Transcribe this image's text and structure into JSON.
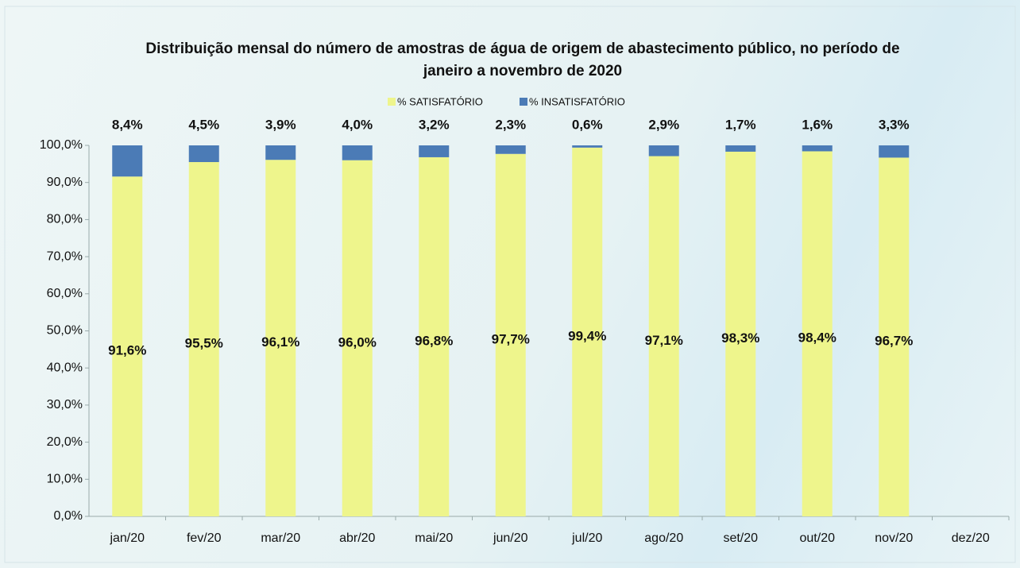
{
  "chart_data": {
    "type": "stacked_bar",
    "title": "Distribuição mensal do número de amostras de água de origem de abastecimento público, no período de janeiro a novembro de 2020",
    "categories": [
      "jan/20",
      "fev/20",
      "mar/20",
      "abr/20",
      "mai/20",
      "jun/20",
      "jul/20",
      "ago/20",
      "set/20",
      "out/20",
      "nov/20",
      "dez/20"
    ],
    "series": [
      {
        "name": "% SATISFATÓRIO",
        "color": "#eef58c",
        "values": [
          91.6,
          95.5,
          96.1,
          96.0,
          96.8,
          97.7,
          99.4,
          97.1,
          98.3,
          98.4,
          96.7,
          null
        ],
        "value_labels": [
          "91,6%",
          "95,5%",
          "96,1%",
          "96,0%",
          "96,8%",
          "97,7%",
          "99,4%",
          "97,1%",
          "98,3%",
          "98,4%",
          "96,7%",
          null
        ]
      },
      {
        "name": "% INSATISFATÓRIO",
        "color": "#4b7bb6",
        "values": [
          8.4,
          4.5,
          3.9,
          4.0,
          3.2,
          2.3,
          0.6,
          2.9,
          1.7,
          1.6,
          3.3,
          null
        ],
        "value_labels": [
          "8,4%",
          "4,5%",
          "3,9%",
          "4,0%",
          "3,2%",
          "2,3%",
          "0,6%",
          "2,9%",
          "1,7%",
          "1,6%",
          "3,3%",
          null
        ]
      }
    ],
    "ylim": [
      0,
      100
    ],
    "yticks": [
      {
        "value": 0,
        "label": "0,0%"
      },
      {
        "value": 10,
        "label": "10,0%"
      },
      {
        "value": 20,
        "label": "20,0%"
      },
      {
        "value": 30,
        "label": "30,0%"
      },
      {
        "value": 40,
        "label": "40,0%"
      },
      {
        "value": 50,
        "label": "50,0%"
      },
      {
        "value": 60,
        "label": "60,0%"
      },
      {
        "value": 70,
        "label": "70,0%"
      },
      {
        "value": 80,
        "label": "80,0%"
      },
      {
        "value": 90,
        "label": "90,0%"
      },
      {
        "value": 100,
        "label": "100,0%"
      }
    ],
    "legend": "top",
    "grid": false
  }
}
